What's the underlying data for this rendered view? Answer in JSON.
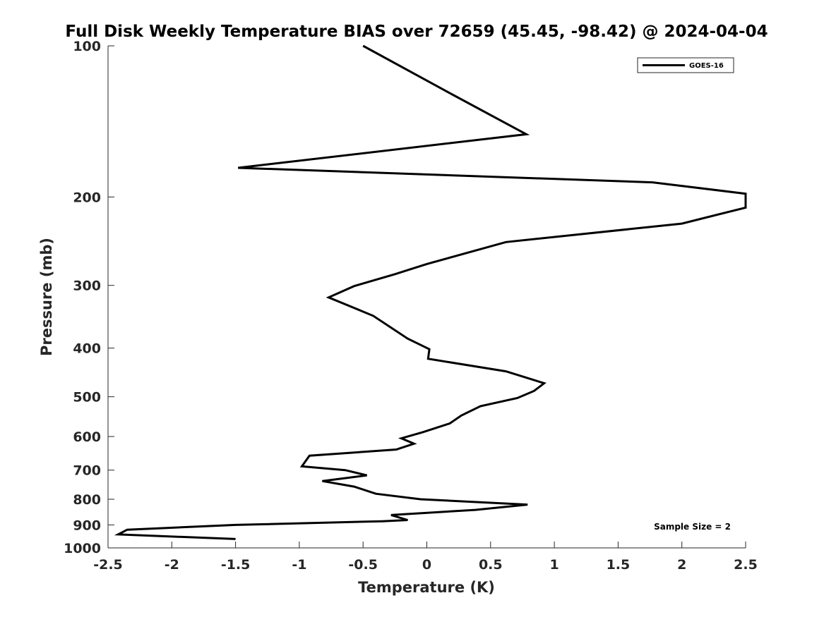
{
  "chart_data": {
    "type": "line",
    "title": "Full Disk Weekly Temperature BIAS over 72659 (45.45, -98.42) @ 2024-04-04",
    "xlabel": "Temperature (K)",
    "ylabel": "Pressure (mb)",
    "xlim": [
      -2.5,
      2.5
    ],
    "ylim": [
      100,
      1000
    ],
    "y_scale": "log",
    "y_reversed": true,
    "x_ticks": [
      "-2.5",
      "-2",
      "-1.5",
      "-1",
      "-0.5",
      "0",
      "0.5",
      "1",
      "1.5",
      "2",
      "2.5"
    ],
    "y_ticks": [
      "100",
      "200",
      "300",
      "400",
      "500",
      "600",
      "700",
      "800",
      "900",
      "1000"
    ],
    "grid": false,
    "legend_position": "top-right",
    "annotation": "Sample Size = 2",
    "series": [
      {
        "name": "GOES-16",
        "color": "#000000",
        "points": [
          {
            "x": -0.5,
            "y": 100
          },
          {
            "x": 0.2,
            "y": 125
          },
          {
            "x": 0.78,
            "y": 150
          },
          {
            "x": -1.48,
            "y": 175
          },
          {
            "x": 1.77,
            "y": 187
          },
          {
            "x": 2.5,
            "y": 197
          },
          {
            "x": 2.5,
            "y": 210
          },
          {
            "x": 2.0,
            "y": 226
          },
          {
            "x": 0.62,
            "y": 246
          },
          {
            "x": 0.0,
            "y": 272
          },
          {
            "x": -0.25,
            "y": 285
          },
          {
            "x": -0.57,
            "y": 301
          },
          {
            "x": -0.77,
            "y": 317
          },
          {
            "x": -0.42,
            "y": 345
          },
          {
            "x": -0.15,
            "y": 383
          },
          {
            "x": 0.02,
            "y": 402
          },
          {
            "x": 0.01,
            "y": 420
          },
          {
            "x": 0.62,
            "y": 445
          },
          {
            "x": 0.92,
            "y": 470
          },
          {
            "x": 0.84,
            "y": 487
          },
          {
            "x": 0.71,
            "y": 503
          },
          {
            "x": 0.42,
            "y": 522
          },
          {
            "x": 0.27,
            "y": 545
          },
          {
            "x": 0.18,
            "y": 565
          },
          {
            "x": -0.03,
            "y": 588
          },
          {
            "x": -0.2,
            "y": 605
          },
          {
            "x": -0.1,
            "y": 620
          },
          {
            "x": -0.24,
            "y": 637
          },
          {
            "x": -0.92,
            "y": 655
          },
          {
            "x": -0.98,
            "y": 688
          },
          {
            "x": -0.64,
            "y": 700
          },
          {
            "x": -0.47,
            "y": 717
          },
          {
            "x": -0.82,
            "y": 736
          },
          {
            "x": -0.57,
            "y": 755
          },
          {
            "x": -0.4,
            "y": 780
          },
          {
            "x": -0.05,
            "y": 800
          },
          {
            "x": 0.79,
            "y": 820
          },
          {
            "x": 0.38,
            "y": 840
          },
          {
            "x": -0.28,
            "y": 860
          },
          {
            "x": -0.15,
            "y": 880
          },
          {
            "x": -0.35,
            "y": 885
          },
          {
            "x": -1.5,
            "y": 900
          },
          {
            "x": -2.35,
            "y": 920
          },
          {
            "x": -2.42,
            "y": 940
          },
          {
            "x": -1.5,
            "y": 960
          }
        ]
      }
    ]
  }
}
